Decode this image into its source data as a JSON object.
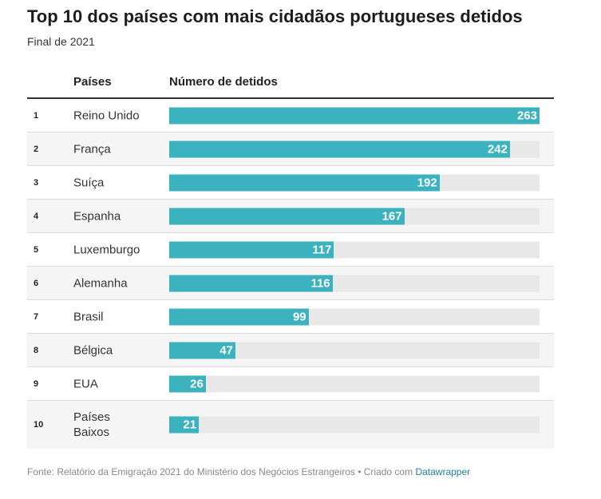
{
  "title": "Top 10 dos países com mais cidadãos portugueses detidos",
  "subtitle": "Final de 2021",
  "columns": {
    "country": "Países",
    "value": "Número de detidos"
  },
  "footer": {
    "text": "Fonte: Relatório da Emigração 2021 do Ministério dos Negócios Estrangeiros • Criado com ",
    "link": "Datawrapper"
  },
  "colors": {
    "bar": "#3bb2be",
    "track": "#e8e8e8"
  },
  "chart_data": {
    "type": "bar",
    "orientation": "horizontal",
    "title": "Top 10 dos países com mais cidadãos portugueses detidos",
    "subtitle": "Final de 2021",
    "xlim": [
      0,
      263
    ],
    "ranks": [
      "1",
      "2",
      "3",
      "4",
      "5",
      "6",
      "7",
      "8",
      "9",
      "10"
    ],
    "categories": [
      "Reino Unido",
      "França",
      "Suíça",
      "Espanha",
      "Luxemburgo",
      "Alemanha",
      "Brasil",
      "Bélgica",
      "EUA",
      "Países Baixos"
    ],
    "values": [
      263,
      242,
      192,
      167,
      117,
      116,
      99,
      47,
      26,
      21
    ]
  }
}
